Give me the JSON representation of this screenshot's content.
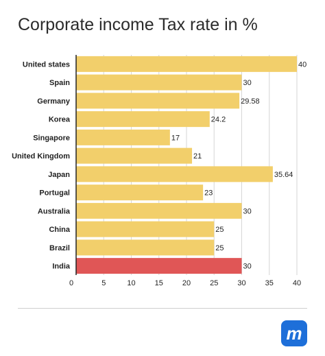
{
  "chart_data": {
    "type": "bar",
    "orientation": "horizontal",
    "title": "Corporate income Tax rate in %",
    "categories": [
      "United states",
      "Spain",
      "Germany",
      "Korea",
      "Singapore",
      "United Kingdom",
      "Japan",
      "Portugal",
      "Australia",
      "China",
      "Brazil",
      "India"
    ],
    "values": [
      40,
      30,
      29.58,
      24.2,
      17,
      21,
      35.64,
      23,
      30,
      25,
      25,
      30
    ],
    "value_labels": [
      "40",
      "30",
      "29.58",
      "24.2",
      "17",
      "21",
      "35.64",
      "23",
      "30",
      "25",
      "25",
      "30"
    ],
    "xticks": [
      "0",
      "5",
      "10",
      "15",
      "20",
      "25",
      "30",
      "35",
      "40"
    ],
    "xlim": [
      0,
      40
    ],
    "grid": "vertical",
    "legend": "none",
    "colors": {
      "bar": "#f2cf6b",
      "highlight": "#e05656",
      "highlight_category": "India",
      "grid": "#d6d6d6",
      "axis": "#222222"
    }
  },
  "branding": {
    "logo_letter": "m",
    "logo_color": "#1e6fd9"
  }
}
